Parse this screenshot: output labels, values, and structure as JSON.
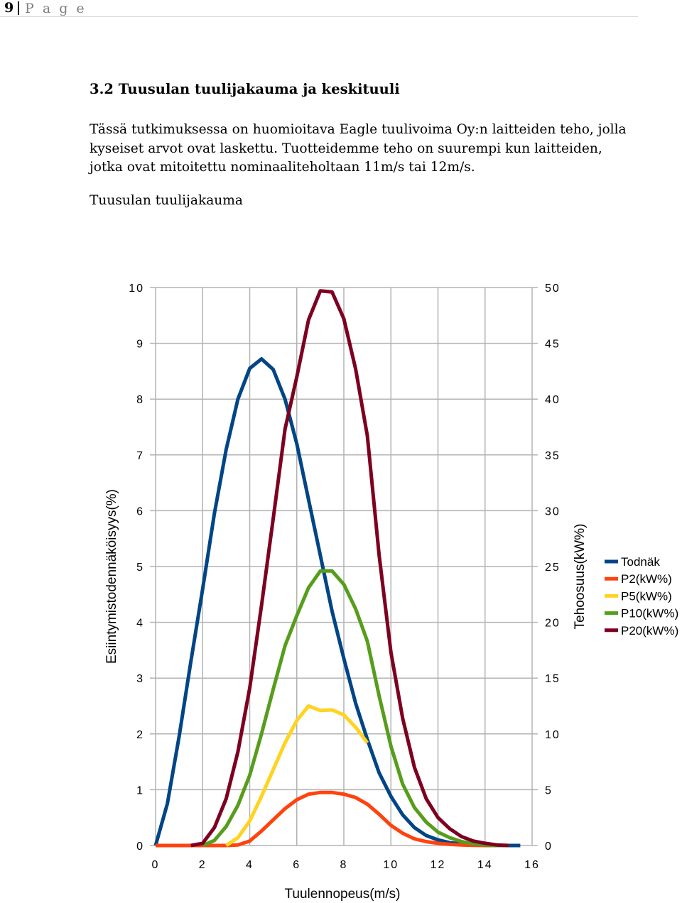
{
  "header": {
    "page_number": "9",
    "page_word": "P a g e"
  },
  "section": {
    "title": "3.2 Tuusulan tuulijakauma ja keskituuli"
  },
  "paragraph": {
    "line1": "Tässä tutkimuksessa on huomioitava Eagle tuulivoima Oy:n laitteiden teho, jolla",
    "line2": "kyseiset arvot ovat laskettu. Tuotteidemme teho on suurempi  kun laitteiden,",
    "line3": "jotka ovat mitoitettu nominaaliteholtaan 11m/s tai 12m/s."
  },
  "figure": {
    "caption": "Tuusulan tuulijakauma"
  },
  "chart_data": {
    "type": "line",
    "title": "",
    "xlabel": "Tuulennopeus(m/s)",
    "ylabel": "Esiintymistodennäköisyys(%)",
    "y2label": "Tehoosuus(kW%)",
    "xlim": [
      0,
      16
    ],
    "ylim": [
      0,
      10
    ],
    "y2lim": [
      0,
      50
    ],
    "x_ticks": [
      "0",
      "2",
      "4",
      "6",
      "8",
      "10",
      "12",
      "14",
      "16"
    ],
    "y_ticks": [
      "0",
      "1",
      "2",
      "3",
      "4",
      "5",
      "6",
      "7",
      "8",
      "9",
      "10"
    ],
    "y2_ticks": [
      "0",
      "5",
      "10",
      "15",
      "20",
      "25",
      "30",
      "35",
      "40",
      "45",
      "50"
    ],
    "grid": true,
    "legend_position": "right",
    "series": [
      {
        "name": "Todnäk",
        "axis": "left",
        "color": "#004586",
        "points": [
          [
            0,
            0
          ],
          [
            0.5,
            0.75
          ],
          [
            1,
            1.95
          ],
          [
            1.5,
            3.3
          ],
          [
            2,
            4.6
          ],
          [
            2.5,
            5.95
          ],
          [
            3,
            7.1
          ],
          [
            3.5,
            8.0
          ],
          [
            4,
            8.55
          ],
          [
            4.5,
            8.72
          ],
          [
            5,
            8.53
          ],
          [
            5.5,
            8.0
          ],
          [
            6,
            7.2
          ],
          [
            6.5,
            6.2
          ],
          [
            7,
            5.2
          ],
          [
            7.5,
            4.2
          ],
          [
            8,
            3.35
          ],
          [
            8.5,
            2.55
          ],
          [
            9,
            1.9
          ],
          [
            9.5,
            1.3
          ],
          [
            10,
            0.88
          ],
          [
            10.5,
            0.55
          ],
          [
            11,
            0.32
          ],
          [
            11.5,
            0.18
          ],
          [
            12,
            0.1
          ],
          [
            12.5,
            0.05
          ],
          [
            13,
            0.03
          ],
          [
            13.5,
            0.02
          ],
          [
            14,
            0.01
          ],
          [
            14.5,
            0
          ],
          [
            15,
            0
          ],
          [
            15.5,
            0
          ]
        ]
      },
      {
        "name": "P2(kW%)",
        "axis": "right",
        "color": "#ff420e",
        "points": [
          [
            0,
            0
          ],
          [
            1,
            0
          ],
          [
            2,
            0
          ],
          [
            3,
            0
          ],
          [
            3.5,
            0.05
          ],
          [
            4,
            0.4
          ],
          [
            4.5,
            1.3
          ],
          [
            5,
            2.3
          ],
          [
            5.5,
            3.3
          ],
          [
            6,
            4.1
          ],
          [
            6.5,
            4.6
          ],
          [
            7,
            4.75
          ],
          [
            7.5,
            4.75
          ],
          [
            8,
            4.6
          ],
          [
            8.5,
            4.3
          ],
          [
            9,
            3.7
          ],
          [
            9.5,
            2.8
          ],
          [
            10,
            1.8
          ],
          [
            10.5,
            1.1
          ],
          [
            11,
            0.6
          ],
          [
            11.5,
            0.35
          ],
          [
            12,
            0.2
          ],
          [
            12.5,
            0.1
          ],
          [
            13,
            0.05
          ],
          [
            13.5,
            0.02
          ],
          [
            14,
            0
          ],
          [
            15,
            0
          ]
        ]
      },
      {
        "name": "P5(kW%)",
        "axis": "right",
        "color": "#ffd320",
        "points": [
          [
            3,
            0
          ],
          [
            3.5,
            0.7
          ],
          [
            4,
            2.2
          ],
          [
            4.5,
            4.4
          ],
          [
            5,
            6.8
          ],
          [
            5.5,
            9.2
          ],
          [
            6,
            11.2
          ],
          [
            6.5,
            12.5
          ],
          [
            7,
            12.1
          ],
          [
            7.5,
            12.15
          ],
          [
            8,
            11.7
          ],
          [
            8.5,
            10.6
          ],
          [
            9,
            9.2
          ]
        ]
      },
      {
        "name": "P10(kW%)",
        "axis": "right",
        "color": "#579d1c",
        "points": [
          [
            2,
            0
          ],
          [
            2.5,
            0.45
          ],
          [
            3,
            1.7
          ],
          [
            3.5,
            3.6
          ],
          [
            4,
            6.3
          ],
          [
            4.5,
            10
          ],
          [
            5,
            14
          ],
          [
            5.5,
            17.9
          ],
          [
            6,
            20.6
          ],
          [
            6.5,
            23.1
          ],
          [
            7,
            24.6
          ],
          [
            7.5,
            24.6
          ],
          [
            8,
            23.4
          ],
          [
            8.5,
            21.2
          ],
          [
            9,
            18.3
          ],
          [
            9.5,
            13.4
          ],
          [
            10,
            8.9
          ],
          [
            10.5,
            5.5
          ],
          [
            11,
            3.4
          ],
          [
            11.5,
            2.1
          ],
          [
            12,
            1.2
          ],
          [
            12.5,
            0.7
          ],
          [
            13,
            0.35
          ],
          [
            13.5,
            0.15
          ],
          [
            14,
            0.05
          ],
          [
            14.5,
            0
          ],
          [
            15,
            0
          ]
        ]
      },
      {
        "name": "P20(kW%)",
        "axis": "right",
        "color": "#7e0021",
        "points": [
          [
            1.5,
            0
          ],
          [
            2,
            0.2
          ],
          [
            2.5,
            1.6
          ],
          [
            3,
            4.2
          ],
          [
            3.5,
            8.4
          ],
          [
            4,
            14.1
          ],
          [
            4.5,
            21.5
          ],
          [
            5,
            29.3
          ],
          [
            5.5,
            37.3
          ],
          [
            6,
            42.0
          ],
          [
            6.5,
            47.1
          ],
          [
            7,
            49.7
          ],
          [
            7.5,
            49.6
          ],
          [
            8,
            47.2
          ],
          [
            8.5,
            42.7
          ],
          [
            9,
            36.7
          ],
          [
            9.5,
            26
          ],
          [
            10,
            17.3
          ],
          [
            10.5,
            11.4
          ],
          [
            11,
            7.0
          ],
          [
            11.5,
            4.2
          ],
          [
            12,
            2.5
          ],
          [
            12.5,
            1.5
          ],
          [
            13,
            0.8
          ],
          [
            13.5,
            0.4
          ],
          [
            14,
            0.2
          ],
          [
            14.5,
            0.05
          ],
          [
            15,
            0
          ]
        ]
      }
    ]
  }
}
